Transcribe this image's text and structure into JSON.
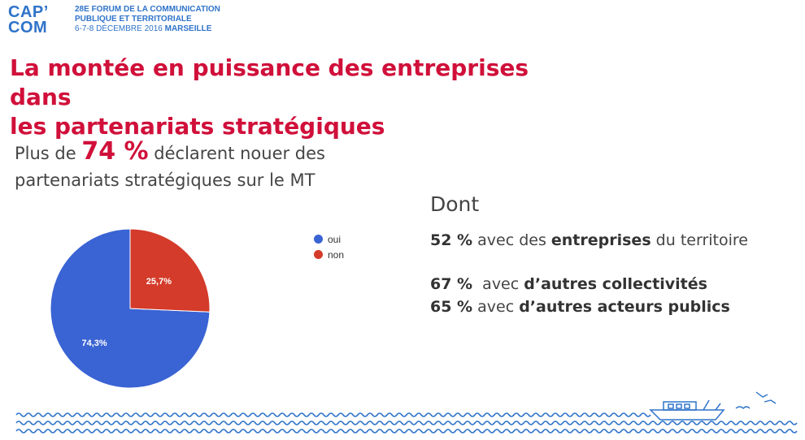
{
  "header": {
    "logo_line1": "CAP’",
    "logo_line2": "COM",
    "event_line1": "28e FORUM DE LA COMMUNICATION",
    "event_line2": "PUBLIQUE ET TERRITORIALE",
    "event_line3_date": "6-7-8 DÉCEMBRE 2016",
    "event_line3_city": "MARSEILLE",
    "brand_color": "#2f73c9"
  },
  "title_line1": "La montée en puissance des entreprises dans",
  "title_line2": "les partenariats stratégiques",
  "subtitle": {
    "prefix": "Plus de ",
    "highlight": "74 %",
    "suffix1": " déclarent nouer des",
    "line2": "partenariats stratégiques sur le MT"
  },
  "dont_label": "Dont",
  "stats": [
    {
      "pct": "52 %",
      "pre": " avec des ",
      "bold": "entreprises",
      "post": " du territoire"
    },
    {
      "pct": "67 %",
      "pre": "  avec ",
      "bold": "d’autres collectivités",
      "post": ""
    },
    {
      "pct": "65 %",
      "pre": " avec ",
      "bold": "d’autres acteurs publics",
      "post": ""
    }
  ],
  "chart_data": {
    "type": "pie",
    "categories": [
      "oui",
      "non"
    ],
    "values": [
      74.3,
      25.7
    ],
    "labels": [
      "74,3%",
      "25,7%"
    ],
    "colors": [
      "#3a63d4",
      "#d43b2a"
    ],
    "legend_position": "right"
  }
}
